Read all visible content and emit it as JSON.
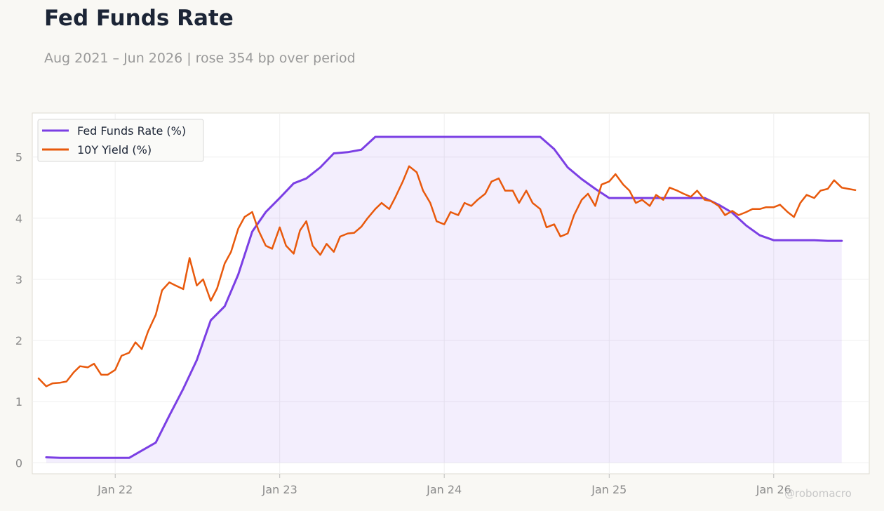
{
  "header": {
    "title": "Fed Funds Rate",
    "subtitle": "Aug 2021 – Jun 2026 | rose 354 bp over period"
  },
  "watermark": "@robomacro",
  "chart_data": {
    "type": "line",
    "title": "Fed Funds Rate",
    "subtitle": "Aug 2021 – Jun 2026 | rose 354 bp over period",
    "xlabel": "",
    "ylabel": "",
    "xlim": [
      "2021-07-01",
      "2026-08-01"
    ],
    "ylim": [
      -0.18,
      5.72
    ],
    "x_ticks": [
      {
        "date": "2022-01-01",
        "label": "Jan 22"
      },
      {
        "date": "2023-01-01",
        "label": "Jan 23"
      },
      {
        "date": "2024-01-01",
        "label": "Jan 24"
      },
      {
        "date": "2025-01-01",
        "label": "Jan 25"
      },
      {
        "date": "2026-01-01",
        "label": "Jan 26"
      }
    ],
    "y_ticks": [
      0,
      1,
      2,
      3,
      4,
      5
    ],
    "grid": true,
    "legend": "top-left",
    "series": [
      {
        "name": "Fed Funds Rate (%)",
        "color": "#7b3fe4",
        "fill": true,
        "points": [
          [
            "2021-08-01",
            0.09
          ],
          [
            "2021-09-01",
            0.08
          ],
          [
            "2021-10-01",
            0.08
          ],
          [
            "2021-11-01",
            0.08
          ],
          [
            "2021-12-01",
            0.08
          ],
          [
            "2022-01-01",
            0.08
          ],
          [
            "2022-02-01",
            0.08
          ],
          [
            "2022-03-01",
            0.2
          ],
          [
            "2022-04-01",
            0.33
          ],
          [
            "2022-05-01",
            0.77
          ],
          [
            "2022-06-01",
            1.21
          ],
          [
            "2022-07-01",
            1.68
          ],
          [
            "2022-08-01",
            2.33
          ],
          [
            "2022-09-01",
            2.56
          ],
          [
            "2022-10-01",
            3.08
          ],
          [
            "2022-11-01",
            3.78
          ],
          [
            "2022-12-01",
            4.1
          ],
          [
            "2023-01-01",
            4.33
          ],
          [
            "2023-02-01",
            4.57
          ],
          [
            "2023-03-01",
            4.65
          ],
          [
            "2023-04-01",
            4.83
          ],
          [
            "2023-05-01",
            5.06
          ],
          [
            "2023-06-01",
            5.08
          ],
          [
            "2023-07-01",
            5.12
          ],
          [
            "2023-08-01",
            5.33
          ],
          [
            "2023-09-01",
            5.33
          ],
          [
            "2023-10-01",
            5.33
          ],
          [
            "2023-11-01",
            5.33
          ],
          [
            "2023-12-01",
            5.33
          ],
          [
            "2024-01-01",
            5.33
          ],
          [
            "2024-02-01",
            5.33
          ],
          [
            "2024-03-01",
            5.33
          ],
          [
            "2024-04-01",
            5.33
          ],
          [
            "2024-05-01",
            5.33
          ],
          [
            "2024-06-01",
            5.33
          ],
          [
            "2024-07-01",
            5.33
          ],
          [
            "2024-08-01",
            5.33
          ],
          [
            "2024-09-01",
            5.13
          ],
          [
            "2024-10-01",
            4.83
          ],
          [
            "2024-11-01",
            4.64
          ],
          [
            "2024-12-01",
            4.48
          ],
          [
            "2025-01-01",
            4.33
          ],
          [
            "2025-02-01",
            4.33
          ],
          [
            "2025-03-01",
            4.33
          ],
          [
            "2025-04-01",
            4.33
          ],
          [
            "2025-05-01",
            4.33
          ],
          [
            "2025-06-01",
            4.33
          ],
          [
            "2025-07-01",
            4.33
          ],
          [
            "2025-08-01",
            4.33
          ],
          [
            "2025-09-01",
            4.22
          ],
          [
            "2025-10-01",
            4.09
          ],
          [
            "2025-11-01",
            3.88
          ],
          [
            "2025-12-01",
            3.72
          ],
          [
            "2026-01-01",
            3.64
          ],
          [
            "2026-02-01",
            3.64
          ],
          [
            "2026-03-01",
            3.64
          ],
          [
            "2026-04-01",
            3.64
          ],
          [
            "2026-05-01",
            3.63
          ],
          [
            "2026-06-01",
            3.63
          ]
        ]
      },
      {
        "name": "10Y Yield (%)",
        "color": "#e8590c",
        "fill": false,
        "points": [
          [
            "2021-07-15",
            1.38
          ],
          [
            "2021-08-01",
            1.25
          ],
          [
            "2021-08-15",
            1.3
          ],
          [
            "2021-09-01",
            1.31
          ],
          [
            "2021-09-15",
            1.33
          ],
          [
            "2021-10-01",
            1.48
          ],
          [
            "2021-10-15",
            1.58
          ],
          [
            "2021-11-01",
            1.56
          ],
          [
            "2021-11-15",
            1.62
          ],
          [
            "2021-12-01",
            1.44
          ],
          [
            "2021-12-15",
            1.44
          ],
          [
            "2022-01-01",
            1.52
          ],
          [
            "2022-01-15",
            1.75
          ],
          [
            "2022-02-01",
            1.8
          ],
          [
            "2022-02-15",
            1.97
          ],
          [
            "2022-03-01",
            1.86
          ],
          [
            "2022-03-15",
            2.15
          ],
          [
            "2022-04-01",
            2.42
          ],
          [
            "2022-04-15",
            2.82
          ],
          [
            "2022-05-01",
            2.95
          ],
          [
            "2022-05-15",
            2.9
          ],
          [
            "2022-06-01",
            2.84
          ],
          [
            "2022-06-15",
            3.35
          ],
          [
            "2022-07-01",
            2.9
          ],
          [
            "2022-07-15",
            3.0
          ],
          [
            "2022-08-01",
            2.65
          ],
          [
            "2022-08-15",
            2.85
          ],
          [
            "2022-09-01",
            3.26
          ],
          [
            "2022-09-15",
            3.45
          ],
          [
            "2022-10-01",
            3.83
          ],
          [
            "2022-10-15",
            4.02
          ],
          [
            "2022-11-01",
            4.1
          ],
          [
            "2022-11-15",
            3.8
          ],
          [
            "2022-12-01",
            3.55
          ],
          [
            "2022-12-15",
            3.5
          ],
          [
            "2023-01-01",
            3.85
          ],
          [
            "2023-01-15",
            3.55
          ],
          [
            "2023-02-01",
            3.42
          ],
          [
            "2023-02-15",
            3.8
          ],
          [
            "2023-03-01",
            3.95
          ],
          [
            "2023-03-15",
            3.55
          ],
          [
            "2023-04-01",
            3.4
          ],
          [
            "2023-04-15",
            3.58
          ],
          [
            "2023-05-01",
            3.45
          ],
          [
            "2023-05-15",
            3.7
          ],
          [
            "2023-06-01",
            3.75
          ],
          [
            "2023-06-15",
            3.76
          ],
          [
            "2023-07-01",
            3.86
          ],
          [
            "2023-07-15",
            4.0
          ],
          [
            "2023-08-01",
            4.15
          ],
          [
            "2023-08-15",
            4.25
          ],
          [
            "2023-09-01",
            4.15
          ],
          [
            "2023-09-15",
            4.35
          ],
          [
            "2023-10-01",
            4.6
          ],
          [
            "2023-10-15",
            4.85
          ],
          [
            "2023-11-01",
            4.75
          ],
          [
            "2023-11-15",
            4.45
          ],
          [
            "2023-12-01",
            4.25
          ],
          [
            "2023-12-15",
            3.95
          ],
          [
            "2024-01-01",
            3.9
          ],
          [
            "2024-01-15",
            4.1
          ],
          [
            "2024-02-01",
            4.05
          ],
          [
            "2024-02-15",
            4.25
          ],
          [
            "2024-03-01",
            4.2
          ],
          [
            "2024-03-15",
            4.3
          ],
          [
            "2024-04-01",
            4.4
          ],
          [
            "2024-04-15",
            4.6
          ],
          [
            "2024-05-01",
            4.65
          ],
          [
            "2024-05-15",
            4.45
          ],
          [
            "2024-06-01",
            4.45
          ],
          [
            "2024-06-15",
            4.25
          ],
          [
            "2024-07-01",
            4.45
          ],
          [
            "2024-07-15",
            4.25
          ],
          [
            "2024-08-01",
            4.15
          ],
          [
            "2024-08-15",
            3.85
          ],
          [
            "2024-09-01",
            3.9
          ],
          [
            "2024-09-15",
            3.7
          ],
          [
            "2024-10-01",
            3.75
          ],
          [
            "2024-10-15",
            4.05
          ],
          [
            "2024-11-01",
            4.3
          ],
          [
            "2024-11-15",
            4.4
          ],
          [
            "2024-12-01",
            4.2
          ],
          [
            "2024-12-15",
            4.55
          ],
          [
            "2025-01-01",
            4.6
          ],
          [
            "2025-01-15",
            4.72
          ],
          [
            "2025-02-01",
            4.55
          ],
          [
            "2025-02-15",
            4.45
          ],
          [
            "2025-03-01",
            4.25
          ],
          [
            "2025-03-15",
            4.3
          ],
          [
            "2025-04-01",
            4.2
          ],
          [
            "2025-04-15",
            4.38
          ],
          [
            "2025-05-01",
            4.3
          ],
          [
            "2025-05-15",
            4.5
          ],
          [
            "2025-06-01",
            4.45
          ],
          [
            "2025-06-15",
            4.4
          ],
          [
            "2025-07-01",
            4.35
          ],
          [
            "2025-07-15",
            4.45
          ],
          [
            "2025-08-01",
            4.3
          ],
          [
            "2025-08-15",
            4.28
          ],
          [
            "2025-09-01",
            4.2
          ],
          [
            "2025-09-15",
            4.05
          ],
          [
            "2025-10-01",
            4.12
          ],
          [
            "2025-10-15",
            4.05
          ],
          [
            "2025-11-01",
            4.1
          ],
          [
            "2025-11-15",
            4.15
          ],
          [
            "2025-12-01",
            4.15
          ],
          [
            "2025-12-15",
            4.18
          ],
          [
            "2026-01-01",
            4.18
          ],
          [
            "2026-01-15",
            4.22
          ],
          [
            "2026-02-01",
            4.1
          ],
          [
            "2026-02-15",
            4.02
          ],
          [
            "2026-03-01",
            4.25
          ],
          [
            "2026-03-15",
            4.38
          ],
          [
            "2026-04-01",
            4.33
          ],
          [
            "2026-04-15",
            4.45
          ],
          [
            "2026-05-01",
            4.48
          ],
          [
            "2026-05-15",
            4.62
          ],
          [
            "2026-06-01",
            4.5
          ],
          [
            "2026-06-15",
            4.48
          ],
          [
            "2026-07-01",
            4.46
          ]
        ]
      }
    ]
  }
}
